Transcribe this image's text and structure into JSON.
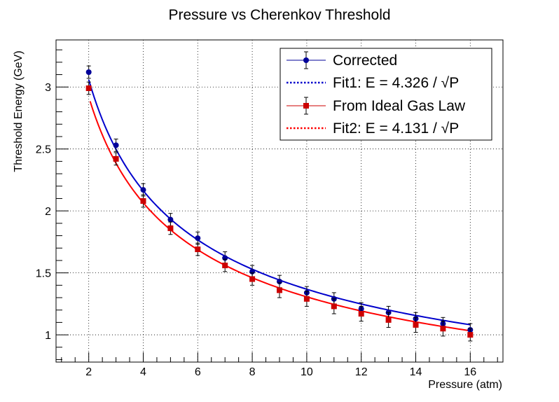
{
  "chart_data": {
    "type": "scatter",
    "title": "Pressure vs Cherenkov Threshold",
    "xlabel": "Pressure (atm)",
    "ylabel": "Threshold Energy (GeV)",
    "xlim": [
      0.8,
      17.2
    ],
    "ylim": [
      0.78,
      3.38
    ],
    "x_ticks": [
      2,
      4,
      6,
      8,
      10,
      12,
      14,
      16
    ],
    "y_ticks": [
      1,
      1.5,
      2,
      2.5,
      3
    ],
    "x_tick_labels": [
      "2",
      "4",
      "6",
      "8",
      "10",
      "12",
      "14",
      "16"
    ],
    "y_tick_labels": [
      "1",
      "1.5",
      "2",
      "2.5",
      "3"
    ],
    "grid": true,
    "legend_position": "top-right",
    "series": [
      {
        "name": "Corrected",
        "kind": "points",
        "marker": "circle",
        "color": "#000099",
        "x": [
          2,
          3,
          4,
          5,
          6,
          7,
          8,
          9,
          10,
          11,
          12,
          13,
          14,
          15,
          16
        ],
        "y": [
          3.12,
          2.53,
          2.17,
          1.93,
          1.78,
          1.62,
          1.51,
          1.43,
          1.34,
          1.29,
          1.21,
          1.18,
          1.13,
          1.09,
          1.04
        ],
        "err": [
          0.05,
          0.05,
          0.05,
          0.05,
          0.05,
          0.05,
          0.05,
          0.05,
          0.05,
          0.05,
          0.05,
          0.05,
          0.05,
          0.05,
          0.05
        ]
      },
      {
        "name": "Fit1: E = 4.326 / √P",
        "kind": "curve",
        "style": "dotted",
        "color": "#0000cc",
        "coef": 4.326,
        "x_range": [
          2,
          16
        ]
      },
      {
        "name": "From Ideal Gas Law",
        "kind": "points",
        "marker": "square",
        "color": "#cc0000",
        "x": [
          2,
          3,
          4,
          5,
          6,
          7,
          8,
          9,
          10,
          11,
          12,
          13,
          14,
          15,
          16
        ],
        "y": [
          2.99,
          2.42,
          2.08,
          1.86,
          1.69,
          1.56,
          1.45,
          1.36,
          1.29,
          1.23,
          1.17,
          1.12,
          1.08,
          1.05,
          1.0
        ],
        "err": [
          0.05,
          0.05,
          0.05,
          0.05,
          0.05,
          0.05,
          0.05,
          0.06,
          0.06,
          0.06,
          0.06,
          0.06,
          0.06,
          0.06,
          0.05
        ]
      },
      {
        "name": "Fit2: E = 4.131 / √P",
        "kind": "curve",
        "style": "dotted",
        "color": "#ff0000",
        "coef": 4.131,
        "x_range": [
          2.05,
          16
        ]
      }
    ]
  },
  "legend": {
    "entries": [
      {
        "text": "Corrected"
      },
      {
        "text": "Fit1: E = 4.326 / √P"
      },
      {
        "text": "From Ideal Gas Law"
      },
      {
        "text": "Fit2: E = 4.131 / √P"
      }
    ]
  }
}
